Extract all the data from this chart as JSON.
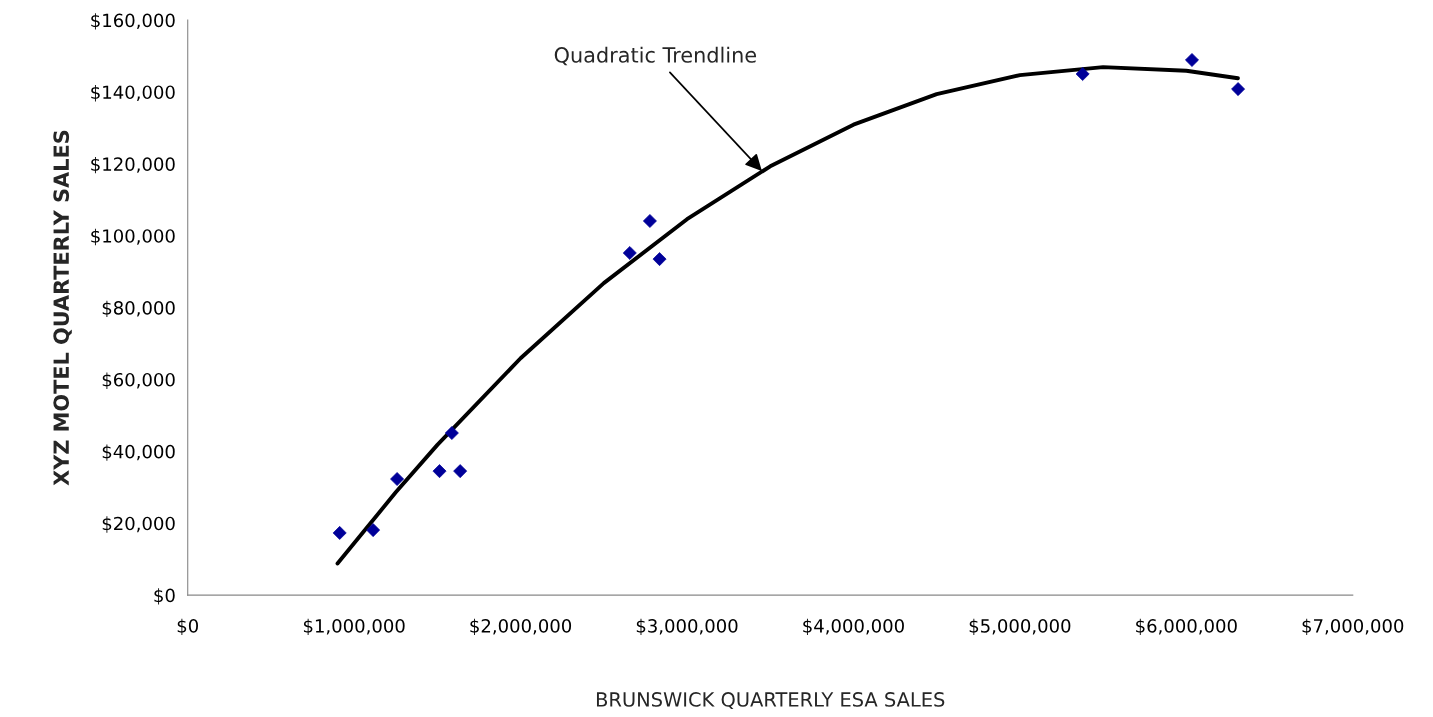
{
  "chart_data": {
    "type": "scatter",
    "xlabel": "BRUNSWICK QUARTERLY ESA SALES",
    "ylabel": "XYZ MOTEL QUARTERLY SALES",
    "xlim": [
      0,
      7000000
    ],
    "ylim": [
      0,
      160000
    ],
    "xticks": [
      {
        "value": 0,
        "label": "$0"
      },
      {
        "value": 1000000,
        "label": "$1,000,000"
      },
      {
        "value": 2000000,
        "label": "$2,000,000"
      },
      {
        "value": 3000000,
        "label": "$3,000,000"
      },
      {
        "value": 4000000,
        "label": "$4,000,000"
      },
      {
        "value": 5000000,
        "label": "$5,000,000"
      },
      {
        "value": 6000000,
        "label": "$6,000,000"
      },
      {
        "value": 7000000,
        "label": "$7,000,000"
      }
    ],
    "yticks": [
      {
        "value": 0,
        "label": "$0"
      },
      {
        "value": 20000,
        "label": "$20,000"
      },
      {
        "value": 40000,
        "label": "$40,000"
      },
      {
        "value": 60000,
        "label": "$60,000"
      },
      {
        "value": 80000,
        "label": "$80,000"
      },
      {
        "value": 100000,
        "label": "$100,000"
      },
      {
        "value": 120000,
        "label": "$120,000"
      },
      {
        "value": 140000,
        "label": "$140,000"
      },
      {
        "value": 160000,
        "label": "$160,000"
      }
    ],
    "grid": false,
    "legend": false,
    "series": [
      {
        "color": "#000099",
        "marker": "diamond",
        "x": [
          913000,
          1114000,
          1258000,
          1513000,
          1587000,
          1637000,
          2656000,
          2777000,
          2835000,
          5377000,
          6034000,
          6311000
        ],
        "values": [
          17300,
          18100,
          32300,
          34500,
          45100,
          34500,
          95200,
          104100,
          93500,
          145000,
          148900,
          140800
        ]
      },
      {
        "type": "line",
        "color": "#000000",
        "marker": "none",
        "line_style": "solid",
        "x": [
          900000,
          1250000,
          1500000,
          2000000,
          2500000,
          3000000,
          3500000,
          4000000,
          4500000,
          5000000,
          5500000,
          6000000,
          6310000
        ],
        "values": [
          8800,
          28600,
          41800,
          65900,
          86800,
          104600,
          119300,
          130900,
          139400,
          144700,
          146900,
          145900,
          143800
        ]
      }
    ],
    "annotations": [
      {
        "text": "Quadratic Trendline",
        "x": 3450000,
        "y": 118000
      }
    ]
  }
}
